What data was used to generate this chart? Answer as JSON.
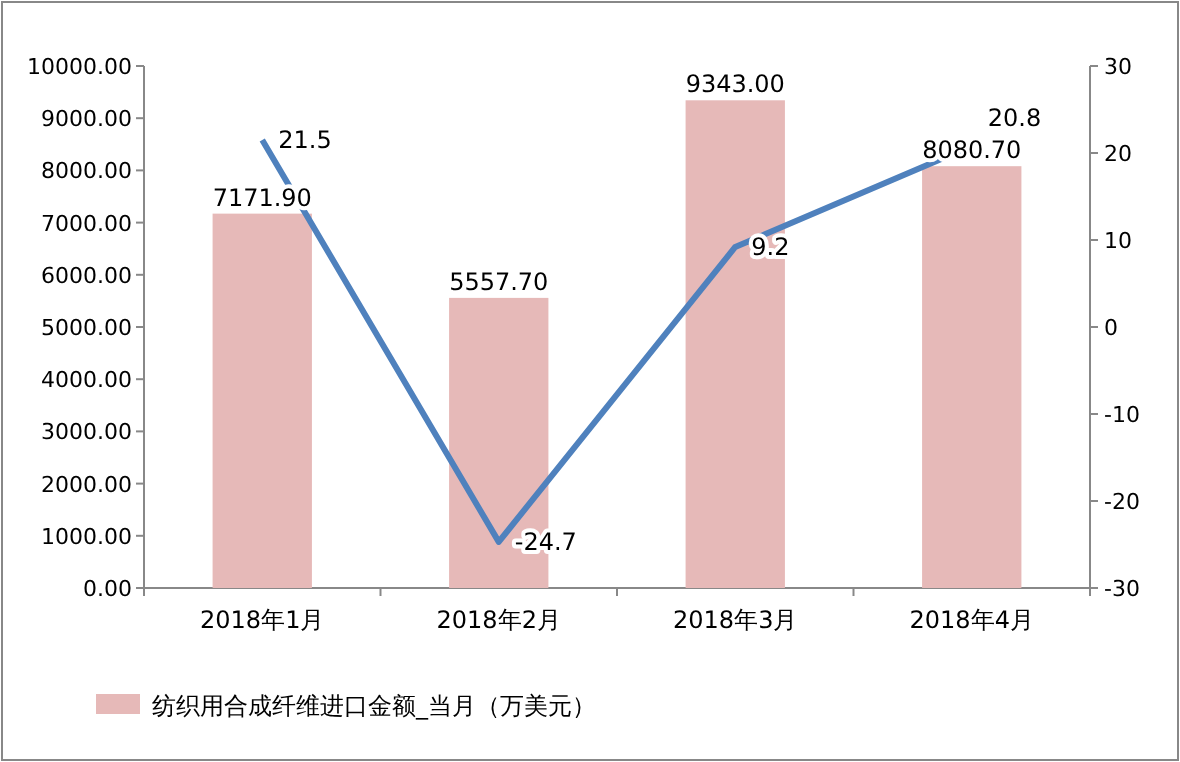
{
  "chart_data": {
    "type": "bar",
    "categories": [
      "2018年1月",
      "2018年2月",
      "2018年3月",
      "2018年4月"
    ],
    "series": [
      {
        "name": "纺织用合成纤维进口金额_当月（万美元）",
        "color": "#e6b9b8",
        "values": [
          7171.9,
          5557.7,
          9343.0,
          8080.7
        ],
        "value_labels": [
          "7171.90",
          "5557.70",
          "9343.00",
          "8080.70"
        ]
      },
      {
        "type": "line",
        "axis": "y2",
        "color": "#4f81bd",
        "values": [
          21.5,
          -24.7,
          9.2,
          20.8
        ],
        "value_labels": [
          "21.5",
          "-24.7",
          "9.2",
          "20.8"
        ]
      }
    ],
    "ylim": [
      0,
      10000
    ],
    "yticks": [
      {
        "value": 0,
        "label": "0.00"
      },
      {
        "value": 1000,
        "label": "1000.00"
      },
      {
        "value": 2000,
        "label": "2000.00"
      },
      {
        "value": 3000,
        "label": "3000.00"
      },
      {
        "value": 4000,
        "label": "4000.00"
      },
      {
        "value": 5000,
        "label": "5000.00"
      },
      {
        "value": 6000,
        "label": "6000.00"
      },
      {
        "value": 7000,
        "label": "7000.00"
      },
      {
        "value": 8000,
        "label": "8000.00"
      },
      {
        "value": 9000,
        "label": "9000.00"
      },
      {
        "value": 10000,
        "label": "10000.00"
      }
    ],
    "y2lim": [
      -30,
      30
    ],
    "y2ticks": [
      -30,
      -20,
      -10,
      0,
      10,
      20,
      30
    ],
    "legend": "bottom",
    "grid": false,
    "marker": "none",
    "line_style": "solid"
  }
}
